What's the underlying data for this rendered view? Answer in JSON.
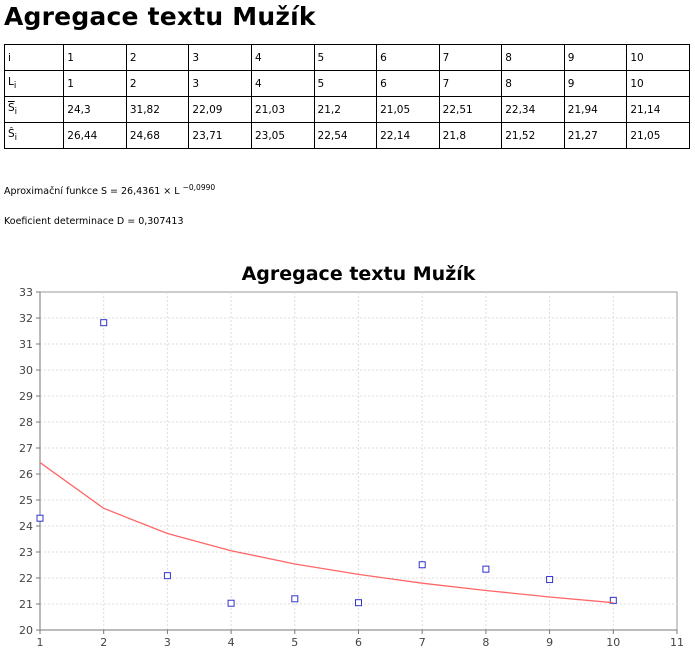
{
  "page": {
    "title": "Agregace textu Mužík"
  },
  "table": {
    "rows": [
      {
        "symbol": "i",
        "sub": "",
        "overline": false,
        "hat": false,
        "values": [
          "1",
          "2",
          "3",
          "4",
          "5",
          "6",
          "7",
          "8",
          "9",
          "10"
        ]
      },
      {
        "symbol": "L",
        "sub": "i",
        "overline": false,
        "hat": false,
        "values": [
          "1",
          "2",
          "3",
          "4",
          "5",
          "6",
          "7",
          "8",
          "9",
          "10"
        ]
      },
      {
        "symbol": "S",
        "sub": "i",
        "overline": true,
        "hat": false,
        "values": [
          "24,3",
          "31,82",
          "22,09",
          "21,03",
          "21,2",
          "21,05",
          "22,51",
          "22,34",
          "21,94",
          "21,14"
        ]
      },
      {
        "symbol": "Ŝ",
        "sub": "i",
        "overline": false,
        "hat": true,
        "values": [
          "26,44",
          "24,68",
          "23,71",
          "23,05",
          "22,54",
          "22,14",
          "21,8",
          "21,52",
          "21,27",
          "21,05"
        ]
      }
    ]
  },
  "info": {
    "approx_text": "Aproximační funkce S = 26,4361 × L",
    "approx_exponent": "−0,0990",
    "determination_text": "Koeficient determinace D = 0,307413"
  },
  "chart_data": {
    "type": "scatter",
    "title": "Agregace textu Mužík",
    "xlabel": "",
    "ylabel": "",
    "xlim": [
      1,
      11
    ],
    "ylim": [
      20,
      33
    ],
    "xticks": [
      "1",
      "2",
      "3",
      "4",
      "5",
      "6",
      "7",
      "8",
      "9",
      "10",
      "11"
    ],
    "yticks": [
      "20",
      "21",
      "22",
      "23",
      "24",
      "25",
      "26",
      "27",
      "28",
      "29",
      "30",
      "31",
      "32",
      "33"
    ],
    "grid": true,
    "series": [
      {
        "kind": "scatter",
        "marker": "square",
        "color": "#3333cc",
        "x": [
          1,
          2,
          3,
          4,
          5,
          6,
          7,
          8,
          9,
          10
        ],
        "y": [
          24.3,
          31.82,
          22.09,
          21.03,
          21.2,
          21.05,
          22.51,
          22.34,
          21.94,
          21.14
        ]
      },
      {
        "kind": "line",
        "color": "#ff6666",
        "x": [
          1,
          2,
          3,
          4,
          5,
          6,
          7,
          8,
          9,
          10
        ],
        "y": [
          26.44,
          24.68,
          23.71,
          23.05,
          22.54,
          22.14,
          21.8,
          21.52,
          21.27,
          21.05
        ]
      }
    ]
  }
}
